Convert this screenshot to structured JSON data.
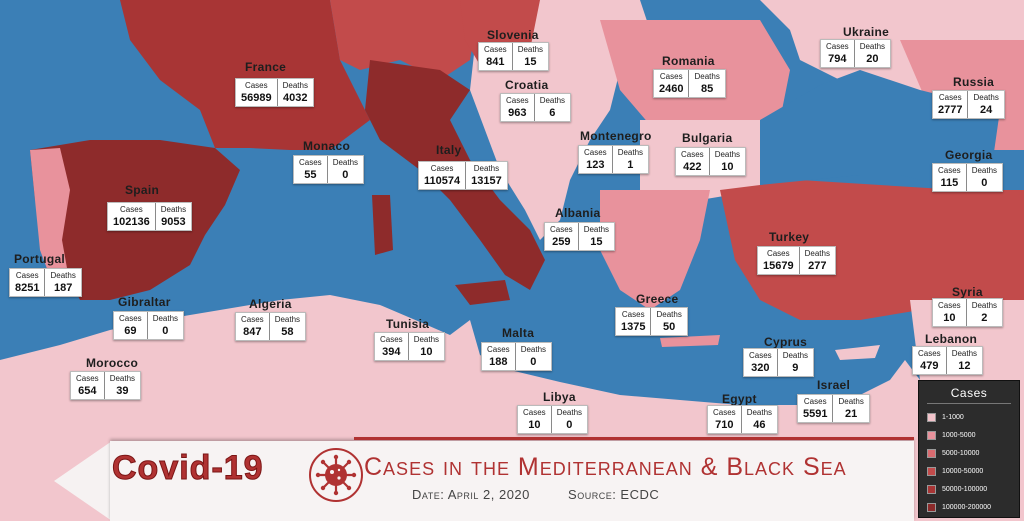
{
  "banner": {
    "brand": "Covid-19",
    "title": "Cases in the Mediterranean & Black Sea",
    "date": "Date: April 2, 2020",
    "source": "Source: ECDC"
  },
  "headers": {
    "cases": "Cases",
    "deaths": "Deaths"
  },
  "countries": [
    {
      "name": "France",
      "cases": "56989",
      "deaths": "4032"
    },
    {
      "name": "Slovenia",
      "cases": "841",
      "deaths": "15"
    },
    {
      "name": "Croatia",
      "cases": "963",
      "deaths": "6"
    },
    {
      "name": "Romania",
      "cases": "2460",
      "deaths": "85"
    },
    {
      "name": "Ukraine",
      "cases": "794",
      "deaths": "20"
    },
    {
      "name": "Russia",
      "cases": "2777",
      "deaths": "24"
    },
    {
      "name": "Monaco",
      "cases": "55",
      "deaths": "0"
    },
    {
      "name": "Italy",
      "cases": "110574",
      "deaths": "13157"
    },
    {
      "name": "Montenegro",
      "cases": "123",
      "deaths": "1"
    },
    {
      "name": "Bulgaria",
      "cases": "422",
      "deaths": "10"
    },
    {
      "name": "Georgia",
      "cases": "115",
      "deaths": "0"
    },
    {
      "name": "Spain",
      "cases": "102136",
      "deaths": "9053"
    },
    {
      "name": "Albania",
      "cases": "259",
      "deaths": "15"
    },
    {
      "name": "Turkey",
      "cases": "15679",
      "deaths": "277"
    },
    {
      "name": "Portugal",
      "cases": "8251",
      "deaths": "187"
    },
    {
      "name": "Gibraltar",
      "cases": "69",
      "deaths": "0"
    },
    {
      "name": "Algeria",
      "cases": "847",
      "deaths": "58"
    },
    {
      "name": "Tunisia",
      "cases": "394",
      "deaths": "10"
    },
    {
      "name": "Greece",
      "cases": "1375",
      "deaths": "50"
    },
    {
      "name": "Syria",
      "cases": "10",
      "deaths": "2"
    },
    {
      "name": "Malta",
      "cases": "188",
      "deaths": "0"
    },
    {
      "name": "Cyprus",
      "cases": "320",
      "deaths": "9"
    },
    {
      "name": "Lebanon",
      "cases": "479",
      "deaths": "12"
    },
    {
      "name": "Morocco",
      "cases": "654",
      "deaths": "39"
    },
    {
      "name": "Israel",
      "cases": "5591",
      "deaths": "21"
    },
    {
      "name": "Libya",
      "cases": "10",
      "deaths": "0"
    },
    {
      "name": "Egypt",
      "cases": "710",
      "deaths": "46"
    }
  ],
  "legend": {
    "title": "Cases",
    "items": [
      {
        "label": "1-1000",
        "color": "#f3c4cb"
      },
      {
        "label": "1000-5000",
        "color": "#e8929c"
      },
      {
        "label": "5000-10000",
        "color": "#d96b70"
      },
      {
        "label": "10000-50000",
        "color": "#c24b4b"
      },
      {
        "label": "50000-100000",
        "color": "#a83535"
      },
      {
        "label": "100000-200000",
        "color": "#8c2a2a"
      }
    ]
  },
  "colors": {
    "sea": "#3b7fb6",
    "accent": "#b03232"
  }
}
